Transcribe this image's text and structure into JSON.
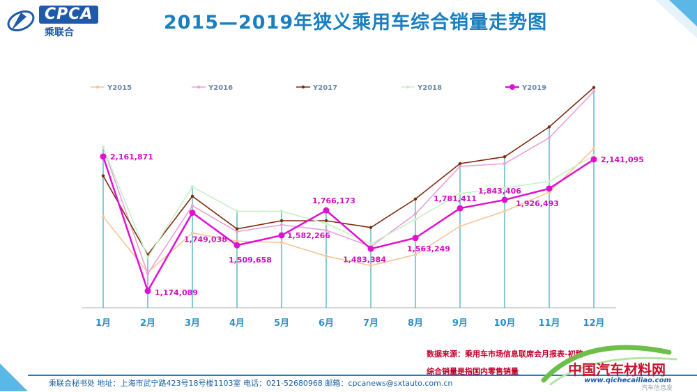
{
  "header": {
    "logo_text": "CPCA",
    "logo_sub": "乘联合",
    "title": "2015—2019年狭义乘用车综合销量走势图"
  },
  "chart_data": {
    "type": "line",
    "title": "2015—2019年狭义乘用车综合销量走势图",
    "categories": [
      "1月",
      "2月",
      "3月",
      "4月",
      "5月",
      "6月",
      "7月",
      "8月",
      "9月",
      "10月",
      "11月",
      "12月"
    ],
    "series": [
      {
        "name": "Y2015",
        "color": "#f5c49a",
        "values": [
          1720000,
          1310000,
          1600000,
          1540000,
          1530000,
          1430000,
          1360000,
          1440000,
          1650000,
          1760000,
          1900000,
          2220000
        ]
      },
      {
        "name": "Y2016",
        "color": "#e8a0d8",
        "values": [
          2230000,
          1300000,
          1800000,
          1610000,
          1660000,
          1620000,
          1500000,
          1740000,
          2090000,
          2110000,
          2300000,
          2640000
        ]
      },
      {
        "name": "Y2017",
        "color": "#7a2a0a",
        "values": [
          2020000,
          1440000,
          1870000,
          1630000,
          1690000,
          1690000,
          1640000,
          1850000,
          2110000,
          2160000,
          2380000,
          2670000
        ]
      },
      {
        "name": "Y2018",
        "color": "#c8f0c4",
        "values": [
          2230000,
          1420000,
          1940000,
          1760000,
          1760000,
          1670000,
          1520000,
          1700000,
          1890000,
          1930000,
          1980000,
          2170000
        ]
      },
      {
        "name": "Y2019",
        "color": "#e010d0",
        "values": [
          2161871,
          1174089,
          1749038,
          1509658,
          1582266,
          1766173,
          1483384,
          1563249,
          1781411,
          1843406,
          1926493,
          2141095
        ]
      }
    ],
    "data_labels": [
      "2,161,871",
      "1,174,089",
      "1,749,038",
      "1,509,658",
      "1,582,266",
      "1,766,173",
      "1,483,384",
      "1,563,249",
      "1,781,411",
      "1,843,406",
      "1,926,493",
      "2,141,095"
    ],
    "ylim": [
      1050000,
      2750000
    ],
    "legend_position": "top",
    "grid": false
  },
  "source": "数据来源：乘用车市场信息联席会月报表-初稿",
  "note": "综合销量是指国内零售销量",
  "footer": "乘联会秘书处   地址：上海市武宁路423号18号楼1103室   电话：021-52680968   邮箱：cpcanews@sxtauto.com.cn",
  "watermark": {
    "text": "中国汽车材料网",
    "url": "www.qichecailiao.com",
    "sub": "汽车信息发"
  }
}
